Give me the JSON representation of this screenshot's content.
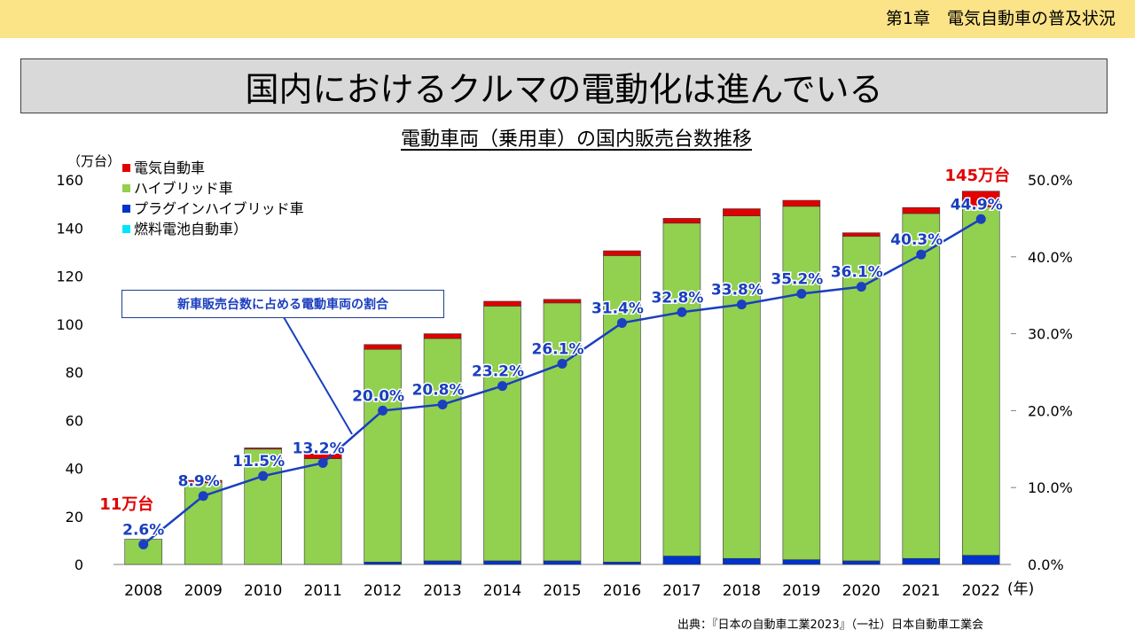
{
  "header": {
    "chapter": "第1章　電気自動車の普及状況"
  },
  "slide_title": "国内におけるクルマの電動化は進んでいる",
  "source": "出典：『日本の自動車工業2023』（一社）日本自動車工業会",
  "chart_data": {
    "type": "bar",
    "title": "電動車両（乗用車）の国内販売台数推移",
    "ylabel": "（万台）",
    "y2label": "",
    "xunit": "(年)",
    "ylim": [
      0,
      160
    ],
    "y2lim": [
      0,
      50
    ],
    "yticks": [
      "0",
      "20",
      "40",
      "60",
      "80",
      "100",
      "120",
      "140",
      "160"
    ],
    "y2ticks": [
      "0.0%",
      "10.0%",
      "20.0%",
      "30.0%",
      "40.0%",
      "50.0%"
    ],
    "categories": [
      "2008",
      "2009",
      "2010",
      "2011",
      "2012",
      "2013",
      "2014",
      "2015",
      "2016",
      "2017",
      "2018",
      "2019",
      "2020",
      "2021",
      "2022"
    ],
    "legend": [
      {
        "name": "電気自動車",
        "color": "#e00000"
      },
      {
        "name": "ハイブリッド車",
        "color": "#92d050"
      },
      {
        "name": "プラグインハイブリッド車",
        "color": "#0033cc"
      },
      {
        "name": "燃料電池自動車）",
        "color": "#00e5ff"
      }
    ],
    "series": [
      {
        "name": "プラグインハイブリッド車",
        "color": "#0033cc",
        "values": [
          0,
          0,
          0,
          0,
          1,
          1.5,
          1.5,
          1.5,
          1,
          3.5,
          2.5,
          2,
          1.5,
          2.5,
          3.8
        ]
      },
      {
        "name": "ハイブリッド車",
        "color": "#92d050",
        "values": [
          10.5,
          34,
          48,
          44,
          88.5,
          92.5,
          106,
          107.3,
          127.5,
          138.5,
          142.5,
          147,
          135,
          143.5,
          145
        ]
      },
      {
        "name": "燃料電池自動車）",
        "color": "#00e5ff",
        "values": [
          0,
          0,
          0,
          0,
          0,
          0,
          0,
          0,
          0,
          0,
          0,
          0,
          0,
          0,
          0
        ]
      },
      {
        "name": "電気自動車",
        "color": "#e00000",
        "values": [
          0,
          1,
          0.5,
          2,
          2,
          2,
          2,
          1.5,
          2,
          2,
          3,
          2.5,
          1.5,
          2.5,
          6.5
        ]
      }
    ],
    "line": {
      "name": "新車販売台数に占める電動車両の割合",
      "color": "#1a3fbf",
      "values": [
        2.6,
        8.9,
        11.5,
        13.2,
        20.0,
        20.8,
        23.2,
        26.1,
        31.4,
        32.8,
        33.8,
        35.2,
        36.1,
        40.3,
        44.9
      ],
      "labels": [
        "2.6%",
        "8.9%",
        "11.5%",
        "13.2%",
        "20.0%",
        "20.8%",
        "23.2%",
        "26.1%",
        "31.4%",
        "32.8%",
        "33.8%",
        "35.2%",
        "36.1%",
        "40.3%",
        "44.9%"
      ]
    },
    "annotations": [
      {
        "text": "11万台",
        "category": "2008",
        "color": "#e00000"
      },
      {
        "text": "145万台",
        "category": "2022",
        "color": "#e00000"
      }
    ],
    "callout": "新車販売台数に占める電動車両の割合"
  }
}
